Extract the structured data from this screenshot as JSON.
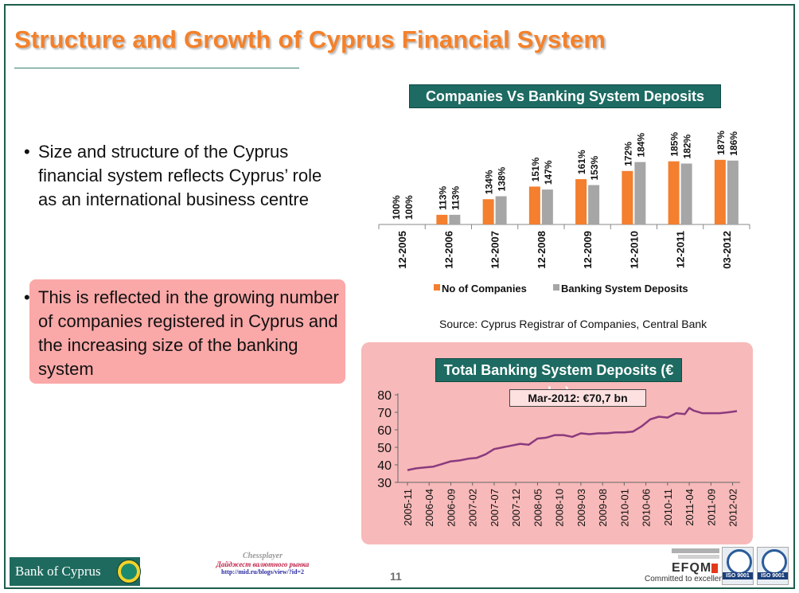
{
  "slide": {
    "title": "Structure and Growth of Cyprus Financial System",
    "page_number": "11",
    "bullets": [
      "Size and structure of the Cyprus financial system reflects Cyprus’ role as an international business centre",
      "This is reflected in the growing number of companies registered in Cyprus and the increasing size of the banking system"
    ],
    "bullet_glyph": "•",
    "highlight_color": "#fba8a8",
    "title_color": "#f4812a",
    "accent_color": "#1d6b62"
  },
  "chart_data": [
    {
      "type": "bar",
      "title": "Companies Vs Banking System Deposits",
      "categories": [
        "12-2005",
        "12-2006",
        "12-2007",
        "12-2008",
        "12-2009",
        "12-2010",
        "12-2011",
        "03-2012"
      ],
      "series": [
        {
          "name": "No of Companies",
          "color": "#f37f2f",
          "values": [
            100,
            113,
            134,
            151,
            161,
            172,
            185,
            187
          ]
        },
        {
          "name": "Banking System Deposits",
          "color": "#a6a6a6",
          "values": [
            100,
            113,
            138,
            147,
            153,
            184,
            182,
            186
          ]
        }
      ],
      "ylim": [
        100,
        190
      ],
      "value_suffix": "%",
      "legend": "bottom",
      "source": "Source: Cyprus Registrar of Companies, Central Bank"
    },
    {
      "type": "line",
      "title": "Total Banking System Deposits (€ bn)",
      "annotation": "Mar-2012: €70,7 bn",
      "yticks": [
        30,
        40,
        50,
        60,
        70,
        80
      ],
      "ylim": [
        30,
        80
      ],
      "xticks": [
        "2005-11",
        "2006-04",
        "2006-09",
        "2007-02",
        "2007-07",
        "2007-12",
        "2008-05",
        "2008-10",
        "2009-03",
        "2009-08",
        "2010-01",
        "2010-06",
        "2010-11",
        "2011-04",
        "2011-09",
        "2012-02"
      ],
      "series": [
        {
          "color": "#8b3a7e",
          "x": [
            "2005-11",
            "2006-01",
            "2006-03",
            "2006-05",
            "2006-07",
            "2006-09",
            "2006-11",
            "2007-01",
            "2007-03",
            "2007-05",
            "2007-07",
            "2007-09",
            "2007-11",
            "2008-01",
            "2008-03",
            "2008-05",
            "2008-07",
            "2008-09",
            "2008-11",
            "2009-01",
            "2009-03",
            "2009-05",
            "2009-07",
            "2009-09",
            "2009-11",
            "2010-01",
            "2010-03",
            "2010-05",
            "2010-07",
            "2010-09",
            "2010-11",
            "2011-01",
            "2011-03",
            "2011-04",
            "2011-05",
            "2011-07",
            "2011-09",
            "2011-11",
            "2012-01",
            "2012-03"
          ],
          "values": [
            37,
            38,
            38.5,
            39,
            40.5,
            42,
            42.5,
            43.5,
            44,
            46,
            49,
            50,
            51,
            52,
            51.5,
            55,
            55.5,
            57,
            57,
            56,
            58,
            57.5,
            58,
            58,
            58.5,
            58.5,
            59,
            62,
            66,
            67.5,
            67,
            69.5,
            69,
            72.5,
            71,
            69.5,
            69.5,
            69.5,
            70,
            70.7
          ]
        }
      ]
    }
  ],
  "footer": {
    "bank_name": "Bank of Cyprus",
    "watermark": [
      "Chessplayer",
      "Дайджест валютного рынка",
      "http://mid.ru/blogs/view/?id=2"
    ],
    "efqm_word": "EFQM",
    "efqm_tagline": "Committed to excellence",
    "iso_labels": [
      "ISO 9001",
      "ISO 9001"
    ]
  }
}
